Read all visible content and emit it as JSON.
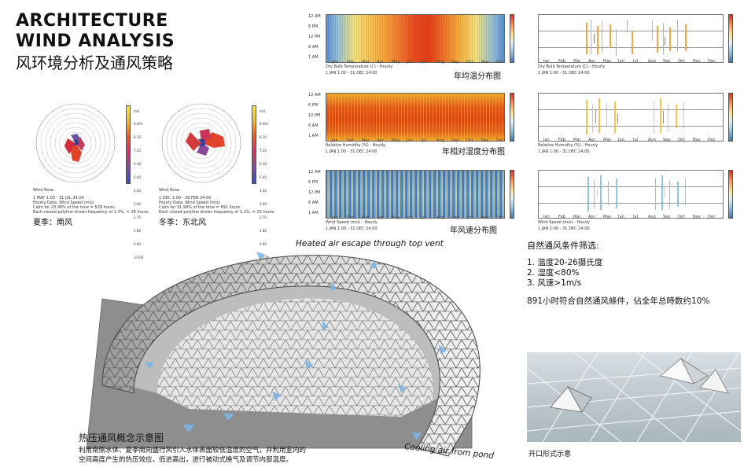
{
  "title": {
    "line1": "ARCHITECTURE",
    "line2": "WIND ANALYSIS",
    "line3": "风环境分析及通风策略"
  },
  "wind_roses": [
    {
      "label": "Wind Rose",
      "unit": "m/s",
      "scale_values": [
        "9.00+",
        "8.10",
        "7.20",
        "6.30",
        "5.40",
        "4.50",
        "3.60",
        "2.70",
        "1.80",
        "0.90",
        "<0.00"
      ],
      "info1": "1 MAY 1:00 - 31 JUL 24:00",
      "info2": "Hourly Data: Wind Speed (m/s)",
      "info3": "Calm for 23.99% of the time = 529 hours.",
      "info4": "Each closed polyline shows frequency of 1.3%. = 28 hours.",
      "caption": "夏季：南风"
    },
    {
      "label": "Wind Rose",
      "unit": "m/s",
      "scale_values": [
        "9.00+",
        "8.10",
        "7.20",
        "6.30",
        "5.40",
        "4.50",
        "3.60",
        "2.70",
        "1.80",
        "0.90",
        "<0.00"
      ],
      "info1": "1 DEC 1:00 - 28 FEB 24:00",
      "info2": "Hourly Data: Wind Speed (m/s)",
      "info3": "Calm for 31.99% of the time = 691 hours.",
      "info4": "Each closed polyline shows frequency of 1.1%. = 23 hours.",
      "caption": "冬季：东北风"
    }
  ],
  "heatmaps": [
    {
      "caption": "年均温分布图",
      "sublabel": "Dry Bulb Temperature (C) - Hourly",
      "range": "1 JAN 1:00 - 31 DEC 24:00",
      "colors": "temp"
    },
    {
      "caption": "年相对湿度分布图",
      "sublabel": "Relative Humidity (%) - Hourly",
      "range": "1 JAN 1:00 - 31 DEC 24:00",
      "colors": "humid"
    },
    {
      "caption": "年风速分布图",
      "sublabel": "Wind Speed (m/s) - Hourly",
      "range": "1 JAN 1:00 - 31 DEC 24:00",
      "colors": "wind"
    }
  ],
  "sparse_charts": [
    {
      "sublabel": "Dry Bulb Temperature (C) - Hourly",
      "range": "1 JAN 1:00 - 31 DEC 24:00"
    },
    {
      "sublabel": "Relative Humidity (%) - Hourly",
      "range": "1 JAN 1:00 - 31 DEC 24:00"
    },
    {
      "sublabel": "Wind Speed (m/s) - Hourly",
      "range": "1 JAN 1:00 - 31 DEC 24:00"
    }
  ],
  "hour_labels": [
    "12 AM",
    "6 PM",
    "12 PM",
    "6 AM",
    "1 AM"
  ],
  "months": [
    "Jan",
    "Feb",
    "Mar",
    "Apr",
    "May",
    "Jun",
    "Jul",
    "Aug",
    "Sep",
    "Oct",
    "Nov",
    "Dec"
  ],
  "criteria": {
    "title": "自然通风条件筛选:",
    "items": [
      "1.  温度20-26摄氏度",
      "2.  湿度<80%",
      "3.  风速>1m/s"
    ],
    "summary": "891小时符合自然通风條件，佔全年总時数约10%"
  },
  "diagram": {
    "top_annotation": "Heated air escape through top vent",
    "bottom_annotation": "Cooling air from pond",
    "title": "热压通风概念示意图",
    "desc1": "利用南侧水体、夏季南向盛行风引入水体表面较低温度的空气，并利用室内的",
    "desc2": "空间高度产生的热压效应，低进高出，进行被动式换气及调节内部温度。"
  },
  "photo": {
    "caption": "开口形式示意"
  }
}
